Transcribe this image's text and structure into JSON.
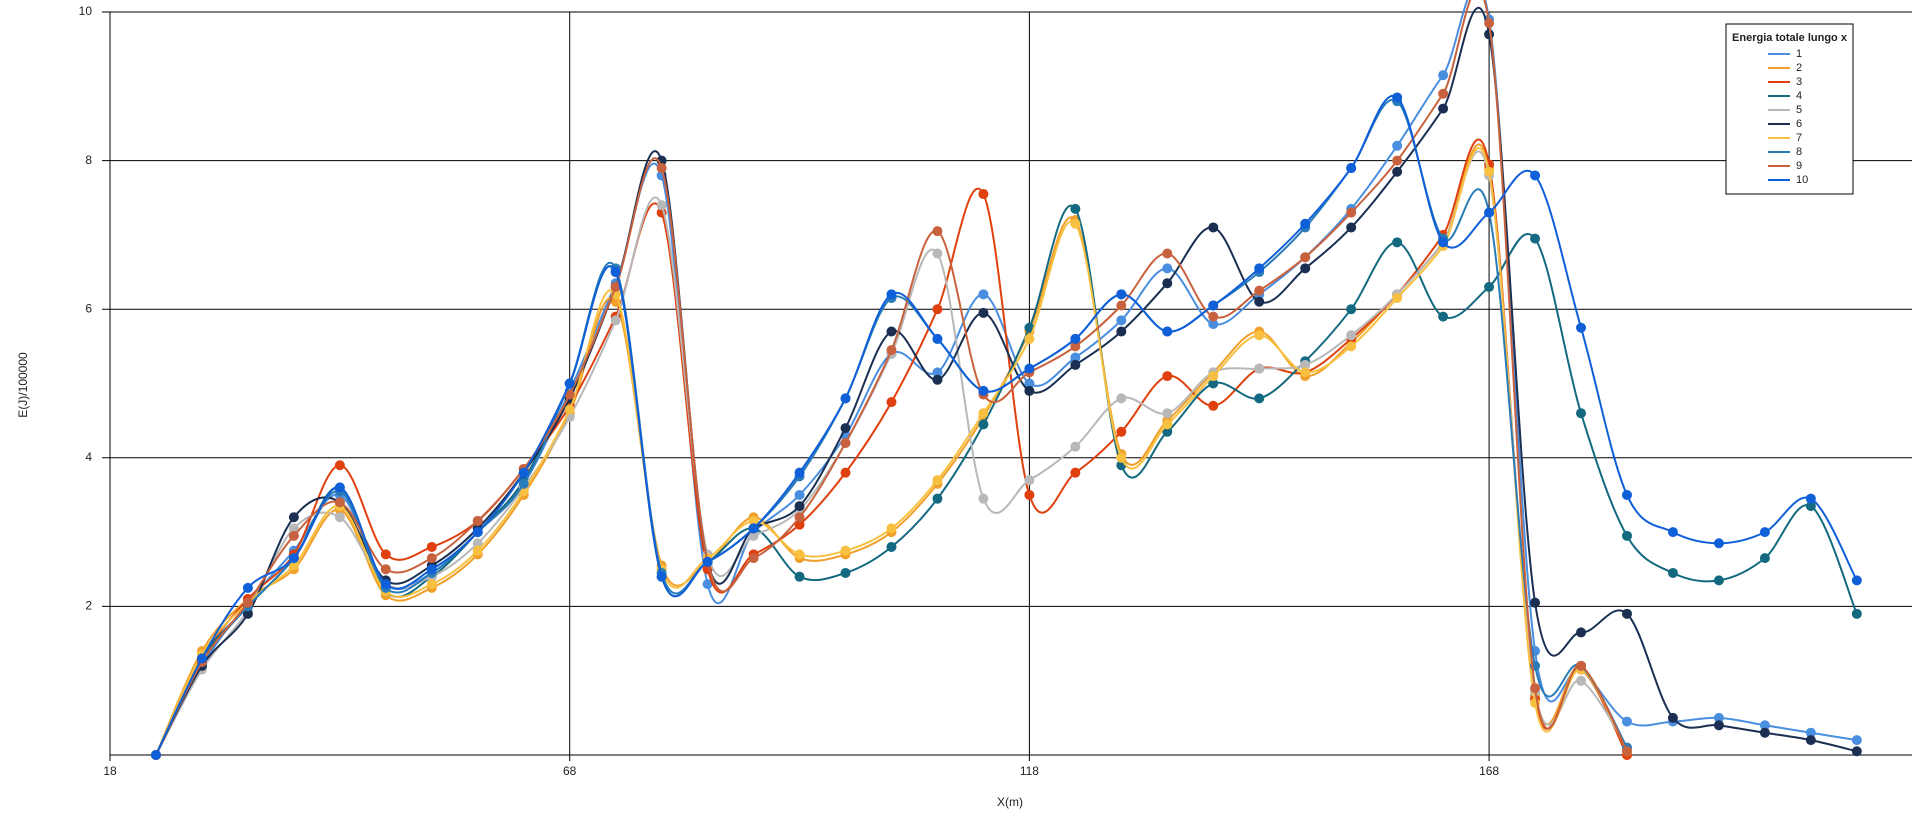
{
  "chart_data": {
    "type": "line",
    "x_label": "X(m)",
    "y_label": "E(J)/100000",
    "legend_title": "Energia totale lungo x",
    "legend_position": "top-right",
    "grid": true,
    "xlim": [
      18,
      214
    ],
    "xticks": [
      18,
      68,
      118,
      168
    ],
    "ylim": [
      0,
      10
    ],
    "yticks": [
      2,
      4,
      6,
      8,
      10
    ],
    "x": [
      23,
      28,
      33,
      38,
      43,
      48,
      53,
      58,
      63,
      68,
      73,
      78,
      83,
      88,
      93,
      98,
      103,
      108,
      113,
      118,
      123,
      128,
      133,
      138,
      143,
      148,
      153,
      158,
      163,
      168,
      173,
      178,
      183,
      188,
      193,
      198,
      203,
      208
    ],
    "series": [
      {
        "name": "1",
        "color": "#4a8ee0",
        "values": [
          0,
          1.2,
          2.05,
          2.75,
          3.5,
          2.3,
          2.45,
          3.0,
          3.65,
          4.9,
          6.35,
          7.8,
          2.3,
          3.0,
          3.5,
          4.3,
          5.4,
          5.15,
          6.2,
          5.0,
          5.35,
          5.85,
          6.55,
          5.8,
          6.2,
          6.7,
          7.35,
          8.2,
          9.15,
          9.9,
          1.4,
          1.15,
          0.45,
          0.45,
          0.5,
          0.4,
          0.3,
          0.2
        ]
      },
      {
        "name": "2",
        "color": "#f0a02a",
        "values": [
          0,
          1.4,
          2.1,
          2.5,
          3.3,
          2.15,
          2.25,
          2.7,
          3.5,
          4.6,
          6.1,
          2.55,
          2.6,
          3.2,
          2.65,
          2.7,
          3.0,
          3.65,
          4.55,
          5.7,
          7.2,
          4.05,
          4.5,
          5.15,
          5.7,
          5.1,
          5.55,
          6.2,
          6.9,
          7.9,
          0.8,
          1.2,
          0,
          null,
          null,
          null,
          null,
          null
        ]
      },
      {
        "name": "3",
        "color": "#e0400e",
        "values": [
          0,
          1.3,
          2.1,
          2.7,
          3.9,
          2.7,
          2.8,
          3.15,
          3.85,
          4.7,
          5.9,
          7.3,
          2.5,
          2.7,
          3.1,
          3.8,
          4.75,
          6.0,
          7.55,
          3.5,
          3.8,
          4.35,
          5.1,
          4.7,
          5.2,
          5.15,
          5.6,
          6.2,
          7.0,
          7.95,
          0.75,
          1.15,
          0,
          null,
          null,
          null,
          null,
          null
        ]
      },
      {
        "name": "4",
        "color": "#136a80",
        "values": [
          0,
          1.3,
          2.0,
          2.65,
          3.6,
          2.2,
          2.4,
          3.0,
          3.7,
          5.0,
          6.5,
          2.4,
          2.6,
          3.05,
          2.4,
          2.45,
          2.8,
          3.45,
          4.45,
          5.75,
          7.35,
          3.9,
          4.35,
          5.0,
          4.8,
          5.3,
          6.0,
          6.9,
          5.9,
          6.3,
          6.95,
          4.6,
          2.95,
          2.45,
          2.35,
          2.65,
          3.35,
          1.9
        ]
      },
      {
        "name": "5",
        "color": "#b8b8b8",
        "values": [
          0,
          1.15,
          1.95,
          3.05,
          3.2,
          2.3,
          2.4,
          2.85,
          3.6,
          4.55,
          5.85,
          7.4,
          2.7,
          2.95,
          3.3,
          4.2,
          5.4,
          6.75,
          3.45,
          3.7,
          4.15,
          4.8,
          4.6,
          5.15,
          5.2,
          5.25,
          5.65,
          6.2,
          6.9,
          7.8,
          0.85,
          1.0,
          0.1,
          null,
          null,
          null,
          null,
          null
        ]
      },
      {
        "name": "6",
        "color": "#1a2f52",
        "values": [
          0,
          1.2,
          1.9,
          3.2,
          3.4,
          2.35,
          2.55,
          3.05,
          3.8,
          4.8,
          6.3,
          8.0,
          2.6,
          3.05,
          3.35,
          4.4,
          5.7,
          5.05,
          5.95,
          4.9,
          5.25,
          5.7,
          6.35,
          7.1,
          6.1,
          6.55,
          7.1,
          7.85,
          8.7,
          9.7,
          2.05,
          1.65,
          1.9,
          0.5,
          0.4,
          0.3,
          0.2,
          0.05
        ]
      },
      {
        "name": "7",
        "color": "#f8c040",
        "values": [
          0,
          1.35,
          2.05,
          2.55,
          3.35,
          2.2,
          2.3,
          2.75,
          3.55,
          4.65,
          6.2,
          2.5,
          2.65,
          3.15,
          2.7,
          2.75,
          3.05,
          3.7,
          4.6,
          5.6,
          7.15,
          4.0,
          4.45,
          5.1,
          5.65,
          5.15,
          5.5,
          6.15,
          6.85,
          7.85,
          0.7,
          1.15,
          0.05,
          null,
          null,
          null,
          null,
          null
        ]
      },
      {
        "name": "8",
        "color": "#2a7cb8",
        "values": [
          0,
          1.25,
          2.0,
          2.65,
          3.55,
          2.25,
          2.45,
          3.0,
          3.65,
          5.0,
          6.55,
          2.45,
          2.6,
          3.05,
          3.75,
          4.8,
          6.15,
          5.6,
          4.9,
          5.2,
          5.6,
          6.2,
          5.7,
          6.05,
          6.5,
          7.1,
          7.9,
          8.8,
          6.95,
          7.3,
          1.2,
          1.2,
          0.1,
          null,
          null,
          null,
          null,
          null
        ]
      },
      {
        "name": "9",
        "color": "#c8623e",
        "values": [
          0,
          1.25,
          2.05,
          2.95,
          3.4,
          2.5,
          2.65,
          3.15,
          3.85,
          4.85,
          6.3,
          7.9,
          2.6,
          2.65,
          3.2,
          4.2,
          5.45,
          7.05,
          4.85,
          5.15,
          5.5,
          6.05,
          6.75,
          5.9,
          6.25,
          6.7,
          7.3,
          8.0,
          8.9,
          9.85,
          0.9,
          1.2,
          0.05,
          null,
          null,
          null,
          null,
          null
        ]
      },
      {
        "name": "10",
        "color": "#0f5fd8",
        "values": [
          0,
          1.3,
          2.25,
          2.65,
          3.6,
          2.3,
          2.5,
          3.0,
          3.8,
          5.0,
          6.5,
          2.4,
          2.6,
          3.05,
          3.8,
          4.8,
          6.2,
          5.6,
          4.9,
          5.2,
          5.6,
          6.2,
          5.7,
          6.05,
          6.55,
          7.15,
          7.9,
          8.85,
          6.9,
          7.3,
          7.8,
          5.75,
          3.5,
          3.0,
          2.85,
          3.0,
          3.45,
          2.35
        ]
      }
    ]
  }
}
